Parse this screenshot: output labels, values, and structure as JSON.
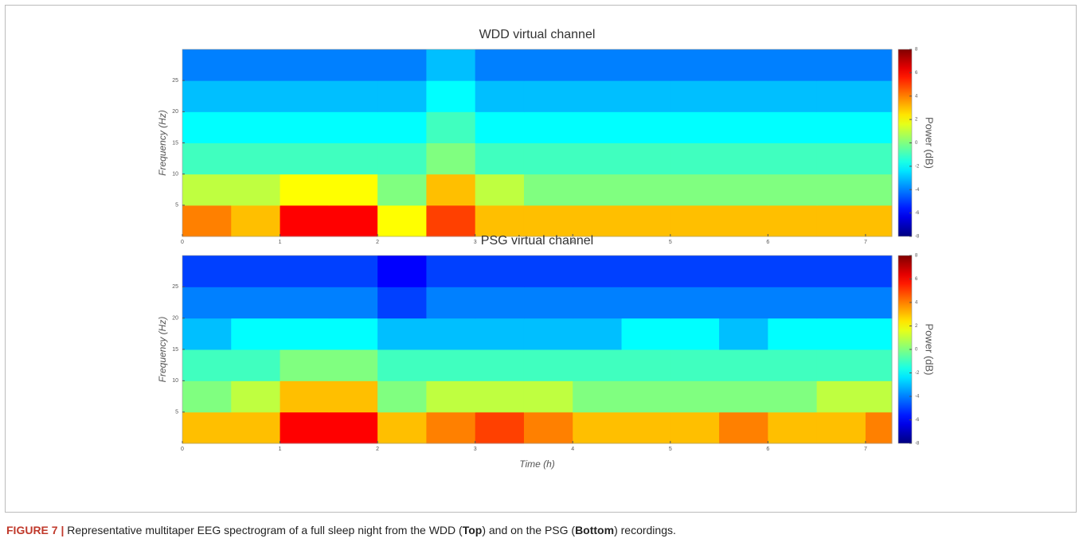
{
  "chart_data": [
    {
      "type": "heatmap",
      "title": "WDD virtual channel",
      "y_label": "Frequency (Hz)",
      "colorbar_label": "Power (dB)",
      "colormap": "jet",
      "xbins": [
        0,
        0.5,
        1,
        1.5,
        2,
        2.5,
        3,
        3.5,
        4,
        4.5,
        5,
        5.5,
        6,
        6.5,
        7,
        7.27
      ],
      "ybins": [
        0,
        5,
        10,
        15,
        20,
        25,
        30
      ],
      "values": [
        [
          4,
          3,
          6,
          6,
          2,
          5,
          3,
          3,
          3,
          3,
          3,
          3,
          3,
          3,
          3
        ],
        [
          1,
          1,
          2,
          2,
          0,
          3,
          1,
          0,
          0,
          0,
          0,
          0,
          0,
          0,
          0
        ],
        [
          -1,
          -1,
          -1,
          -1,
          -1,
          0,
          -1,
          -1,
          -1,
          -1,
          -1,
          -1,
          -1,
          -1,
          -1
        ],
        [
          -2,
          -2,
          -2,
          -2,
          -2,
          -1,
          -2,
          -2,
          -2,
          -2,
          -2,
          -2,
          -2,
          -2,
          -2
        ],
        [
          -3,
          -3,
          -3,
          -3,
          -3,
          -2,
          -3,
          -3,
          -3,
          -3,
          -3,
          -3,
          -3,
          -3,
          -3
        ],
        [
          -4,
          -4,
          -4,
          -4,
          -4,
          -3,
          -4,
          -4,
          -4,
          -4,
          -4,
          -4,
          -4,
          -4,
          -4
        ]
      ],
      "xlim": [
        0,
        7.27
      ],
      "xticks": [
        0,
        1,
        2,
        3,
        4,
        5,
        6,
        7
      ],
      "ylim": [
        0,
        30
      ],
      "yticks": [
        5,
        10,
        15,
        20,
        25
      ],
      "clim": [
        -8,
        8
      ],
      "cticks": [
        -8,
        -6,
        -4,
        -2,
        0,
        2,
        4,
        6,
        8
      ]
    },
    {
      "type": "heatmap",
      "title": "PSG virtual channel",
      "x_label": "Time (h)",
      "y_label": "Frequency (Hz)",
      "colorbar_label": "Power (dB)",
      "colormap": "jet",
      "xbins": [
        0,
        0.5,
        1,
        1.5,
        2,
        2.5,
        3,
        3.5,
        4,
        4.5,
        5,
        5.5,
        6,
        6.5,
        7,
        7.27
      ],
      "ybins": [
        0,
        5,
        10,
        15,
        20,
        25,
        30
      ],
      "values": [
        [
          3,
          3,
          6,
          6,
          3,
          4,
          5,
          4,
          3,
          3,
          3,
          4,
          3,
          3,
          4
        ],
        [
          0,
          1,
          3,
          3,
          0,
          1,
          1,
          1,
          0,
          0,
          0,
          0,
          0,
          1,
          1
        ],
        [
          -1,
          -1,
          0,
          0,
          -1,
          -1,
          -1,
          -1,
          -1,
          -1,
          -1,
          -1,
          -1,
          -1,
          -1
        ],
        [
          -3,
          -2,
          -2,
          -2,
          -3,
          -3,
          -3,
          -3,
          -3,
          -2,
          -2,
          -3,
          -2,
          -2,
          -2
        ],
        [
          -4,
          -4,
          -4,
          -4,
          -5,
          -4,
          -4,
          -4,
          -4,
          -4,
          -4,
          -4,
          -4,
          -4,
          -4
        ],
        [
          -5,
          -5,
          -5,
          -5,
          -6,
          -5,
          -5,
          -5,
          -5,
          -5,
          -5,
          -5,
          -5,
          -5,
          -5
        ]
      ],
      "xlim": [
        0,
        7.27
      ],
      "xticks": [
        0,
        1,
        2,
        3,
        4,
        5,
        6,
        7
      ],
      "ylim": [
        0,
        30
      ],
      "yticks": [
        5,
        10,
        15,
        20,
        25
      ],
      "clim": [
        -8,
        8
      ],
      "cticks": [
        -8,
        -6,
        -4,
        -2,
        0,
        2,
        4,
        6,
        8
      ]
    }
  ],
  "caption": {
    "label": "FIGURE 7 |",
    "text1": "Representative multitaper EEG spectrogram of a full sleep night from the WDD (",
    "bold1": "Top",
    "text2": ") and on the PSG (",
    "bold2": "Bottom",
    "text3": ") recordings."
  }
}
